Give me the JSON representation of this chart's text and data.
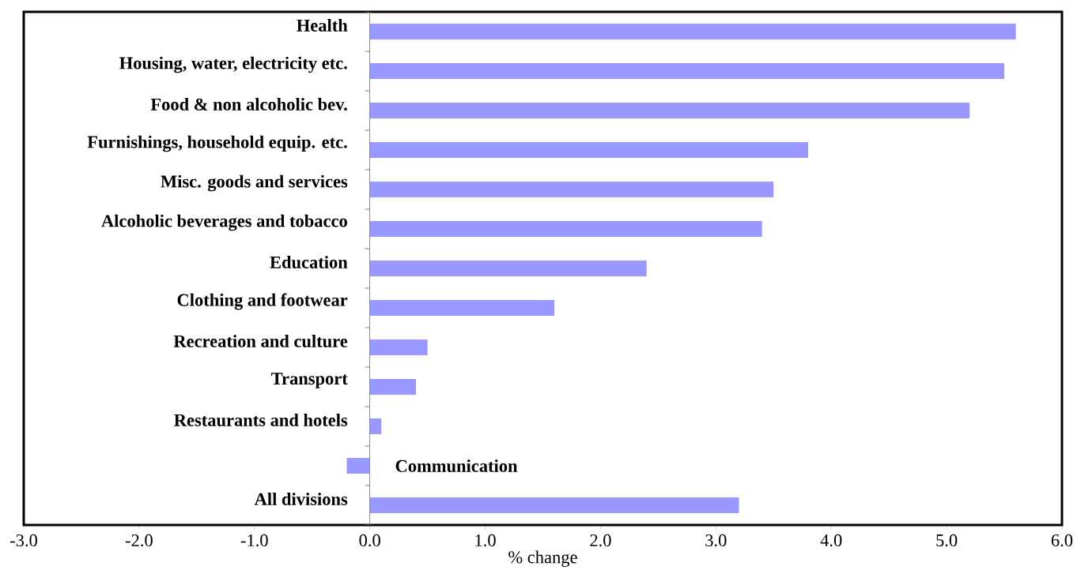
{
  "chart_data": {
    "type": "bar",
    "orientation": "horizontal",
    "categories": [
      "Health",
      "Housing, water, electricity etc.",
      "Food & non alcoholic bev.",
      "Furnishings, household equip. etc.",
      "Misc. goods and services",
      "Alcoholic beverages and tobacco",
      "Education",
      "Clothing and footwear",
      "Recreation and culture",
      "Transport",
      "Restaurants and hotels",
      "Communication",
      "All divisions"
    ],
    "values": [
      5.6,
      5.5,
      5.2,
      3.8,
      3.5,
      3.4,
      2.4,
      1.6,
      0.5,
      0.4,
      0.1,
      -0.2,
      3.2
    ],
    "color": "#9999ff",
    "xlabel": "% change",
    "xlim": [
      -3,
      6
    ],
    "xticks": [
      {
        "value": -3,
        "label": "-3.0"
      },
      {
        "value": -2,
        "label": "-2.0"
      },
      {
        "value": -1,
        "label": "-1.0"
      },
      {
        "value": 0,
        "label": "0.0"
      },
      {
        "value": 1,
        "label": "1.0"
      },
      {
        "value": 2,
        "label": "2.0"
      },
      {
        "value": 3,
        "label": "3.0"
      },
      {
        "value": 4,
        "label": "4.0"
      },
      {
        "value": 5,
        "label": "5.0"
      },
      {
        "value": 6,
        "label": "6.0"
      }
    ]
  }
}
